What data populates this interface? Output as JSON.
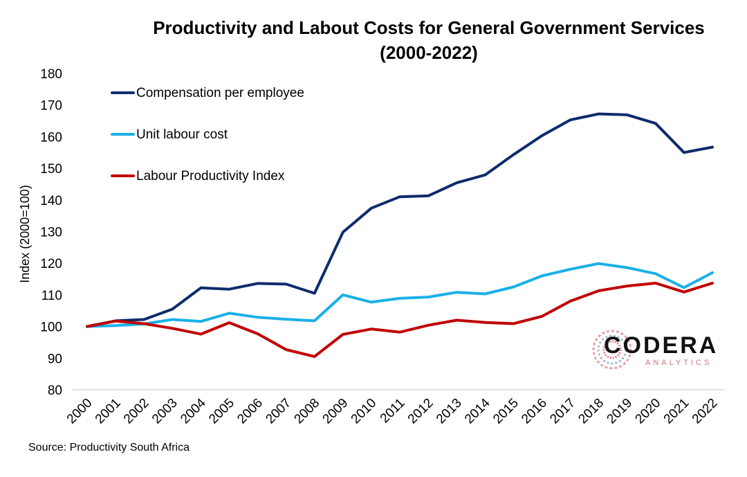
{
  "chart_data": {
    "type": "line",
    "title_line1": "Productivity and Labout Costs for General Government Services",
    "title_line2": "(2000-2022)",
    "ylabel": "Index (2000=100)",
    "xlabel": "",
    "ylim": [
      80,
      180
    ],
    "yticks": [
      80,
      90,
      100,
      110,
      120,
      130,
      140,
      150,
      160,
      170,
      180
    ],
    "grid": false,
    "legend_position": "top-left",
    "categories": [
      "2000",
      "2001",
      "2002",
      "2003",
      "2004",
      "2005",
      "2006",
      "2007",
      "2008",
      "2009",
      "2010",
      "2011",
      "2012",
      "2013",
      "2014",
      "2015",
      "2016",
      "2017",
      "2018",
      "2019",
      "2020",
      "2021",
      "2022"
    ],
    "series": [
      {
        "name": "Compensation per employee",
        "color": "#0d2c6c",
        "values": [
          100,
          101.8,
          102.2,
          105.5,
          112.2,
          111.8,
          113.6,
          113.4,
          110.5,
          129.8,
          137.4,
          141.0,
          141.3,
          145.4,
          147.9,
          154.3,
          160.3,
          165.3,
          167.2,
          166.9,
          164.2,
          155.0,
          156.7
        ]
      },
      {
        "name": "Unit labour cost",
        "color": "#1ab0e8",
        "values": [
          100,
          100.3,
          100.8,
          102.2,
          101.6,
          104.2,
          102.9,
          102.3,
          101.8,
          110.0,
          107.7,
          108.9,
          109.3,
          110.8,
          110.3,
          112.5,
          116.0,
          118.1,
          119.9,
          118.6,
          116.7,
          112.3,
          117.0
        ]
      },
      {
        "name": "Labour Productivity Index",
        "color": "#c00000",
        "values": [
          100,
          101.7,
          100.9,
          99.4,
          97.6,
          101.2,
          97.7,
          92.7,
          90.5,
          97.5,
          99.2,
          98.2,
          100.4,
          102.0,
          101.3,
          100.9,
          103.2,
          108.0,
          111.3,
          112.8,
          113.7,
          110.9,
          113.7
        ]
      }
    ]
  },
  "source": "Source: Productivity South Africa",
  "logo": {
    "word": "CODERA",
    "sub": "ANALYTICS"
  }
}
